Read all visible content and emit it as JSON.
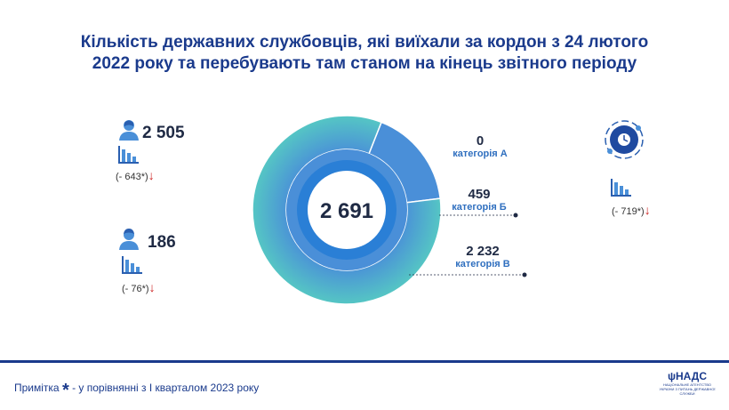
{
  "title": {
    "line1": "Кількість державних службовців, які виїхали за кордон з 24 лютого",
    "line2": "2022 року та перебувають там станом на кінець звітного періоду"
  },
  "left_stats": [
    {
      "icon": "female-person-icon",
      "value": "2 505",
      "delta": "(- 643*)"
    },
    {
      "icon": "male-person-icon",
      "value": "186",
      "delta": "(- 76*)"
    }
  ],
  "right_stat": {
    "icon": "globe-clock-icon",
    "delta": "(- 719*)"
  },
  "chart_data": {
    "type": "pie",
    "subtype": "donut",
    "center_label": "2 691",
    "categories": [
      "категорія А",
      "категорія Б",
      "категорія В"
    ],
    "values": [
      0,
      459,
      2232
    ],
    "value_labels": [
      "0",
      "459",
      "2 232"
    ],
    "colors": [
      "#2a7fd6",
      "#4a8fd8",
      "#4fc7c6"
    ]
  },
  "footer": {
    "note_prefix": "Примітка",
    "note_star": "*",
    "note_text": "- у порівнянні з І кварталом 2023 року",
    "logo_name": "НАДС",
    "logo_sub": "НАЦІОНАЛЬНЕ АГЕНТСТВО УКРАЇНИ З ПИТАНЬ ДЕРЖАВНОЇ СЛУЖБИ"
  },
  "colors": {
    "title": "#1a3a8c",
    "accent_blue": "#2a7fd6",
    "teal": "#4fc7c6",
    "arrow_red": "#cc1f1f"
  }
}
